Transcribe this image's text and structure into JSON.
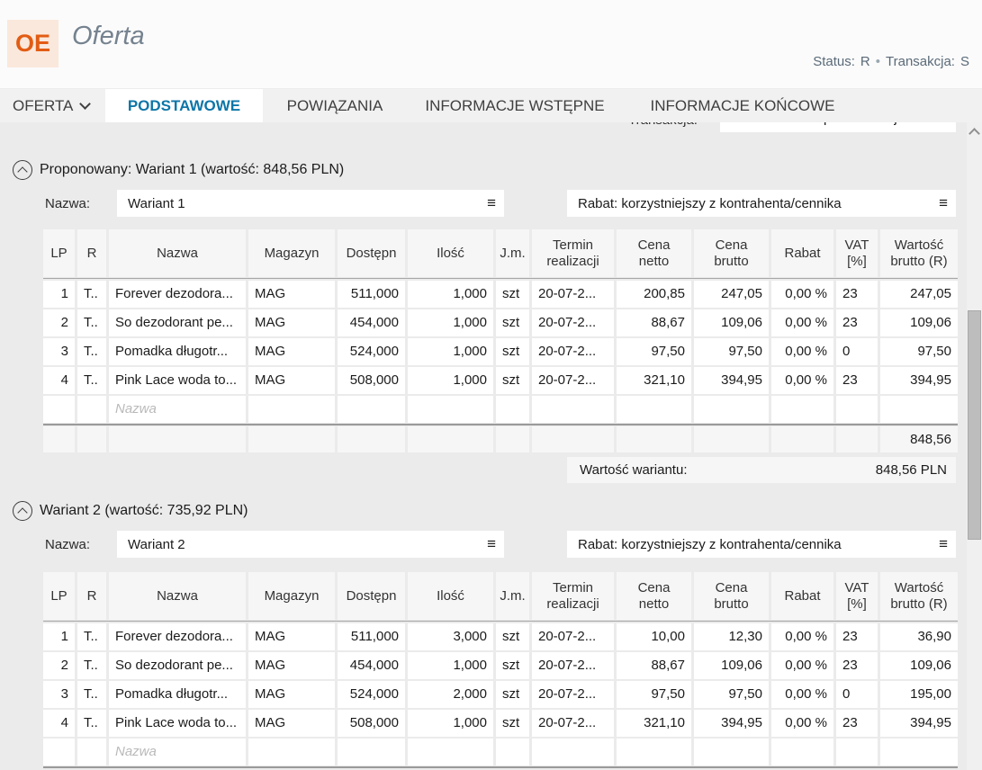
{
  "header": {
    "logo": "OE",
    "title": "Oferta",
    "status_label": "Status:",
    "status_value": "R",
    "separator": "•",
    "transaction_label": "Transakcja:",
    "transaction_value": "S"
  },
  "tabbar": {
    "menu_label": "OFERTA",
    "tabs": [
      {
        "label": "PODSTAWOWE"
      },
      {
        "label": "POWIĄZANIA"
      },
      {
        "label": "INFORMACJE WSTĘPNE"
      },
      {
        "label": "INFORMACJE KOŃCOWE"
      }
    ]
  },
  "top_form": {
    "label": "Transakcja:",
    "code": "S",
    "value": "Sprzedaż krajowa"
  },
  "table_columns": [
    "LP",
    "R",
    "Nazwa",
    "Magazyn",
    "Dostępn",
    "Ilość",
    "J.m.",
    "Termin\nrealizacji",
    "Cena\nnetto",
    "Cena\nbrutto",
    "Rabat",
    "VAT\n[%]",
    "Wartość\nbrutto (R)"
  ],
  "variants": [
    {
      "title": "Proponowany: Wariant 1 (wartość: 848,56 PLN)",
      "name_label": "Nazwa:",
      "name_value": "Wariant 1",
      "discount_setting": "Rabat: korzystniejszy z kontrahenta/cennika",
      "rows": [
        [
          "1",
          "T..",
          "Forever dezodora...",
          "MAG",
          "511,000",
          "1,000",
          "szt",
          "20-07-2...",
          "200,85",
          "247,05",
          "0,00 %",
          "23",
          "247,05"
        ],
        [
          "2",
          "T..",
          "So dezodorant pe...",
          "MAG",
          "454,000",
          "1,000",
          "szt",
          "20-07-2...",
          "88,67",
          "109,06",
          "0,00 %",
          "23",
          "109,06"
        ],
        [
          "3",
          "T..",
          "Pomadka długotr...",
          "MAG",
          "524,000",
          "1,000",
          "szt",
          "20-07-2...",
          "97,50",
          "97,50",
          "0,00 %",
          "0",
          "97,50"
        ],
        [
          "4",
          "T..",
          "Pink Lace woda to...",
          "MAG",
          "508,000",
          "1,000",
          "szt",
          "20-07-2...",
          "321,10",
          "394,95",
          "0,00 %",
          "23",
          "394,95"
        ]
      ],
      "new_row_placeholder": "Nazwa",
      "has_summary": true,
      "sum_value": "848,56",
      "total_label": "Wartość wariantu:",
      "total_value": "848,56 PLN"
    },
    {
      "title": "Wariant 2 (wartość: 735,92 PLN)",
      "name_label": "Nazwa:",
      "name_value": "Wariant 2",
      "discount_setting": "Rabat: korzystniejszy z kontrahenta/cennika",
      "rows": [
        [
          "1",
          "T..",
          "Forever dezodora...",
          "MAG",
          "511,000",
          "3,000",
          "szt",
          "20-07-2...",
          "10,00",
          "12,30",
          "0,00 %",
          "23",
          "36,90"
        ],
        [
          "2",
          "T..",
          "So dezodorant pe...",
          "MAG",
          "454,000",
          "1,000",
          "szt",
          "20-07-2...",
          "88,67",
          "109,06",
          "0,00 %",
          "23",
          "109,06"
        ],
        [
          "3",
          "T..",
          "Pomadka długotr...",
          "MAG",
          "524,000",
          "2,000",
          "szt",
          "20-07-2...",
          "97,50",
          "97,50",
          "0,00 %",
          "0",
          "195,00"
        ],
        [
          "4",
          "T..",
          "Pink Lace woda to...",
          "MAG",
          "508,000",
          "1,000",
          "szt",
          "20-07-2...",
          "321,10",
          "394,95",
          "0,00 %",
          "23",
          "394,95"
        ]
      ],
      "new_row_placeholder": "Nazwa",
      "has_summary": false
    }
  ],
  "icons": {
    "menu_chevron": "chevron-down",
    "collapse": "chevron-up-circle",
    "attachment": "paperclip",
    "field_menu_glyph": "≡",
    "scrollbar_up": "chevron-up"
  },
  "colors": {
    "accent_blue": "#0d76a8",
    "logo_orange": "#e25c13",
    "logo_bg": "#fae8dc",
    "content_bg": "#ebebeb"
  }
}
